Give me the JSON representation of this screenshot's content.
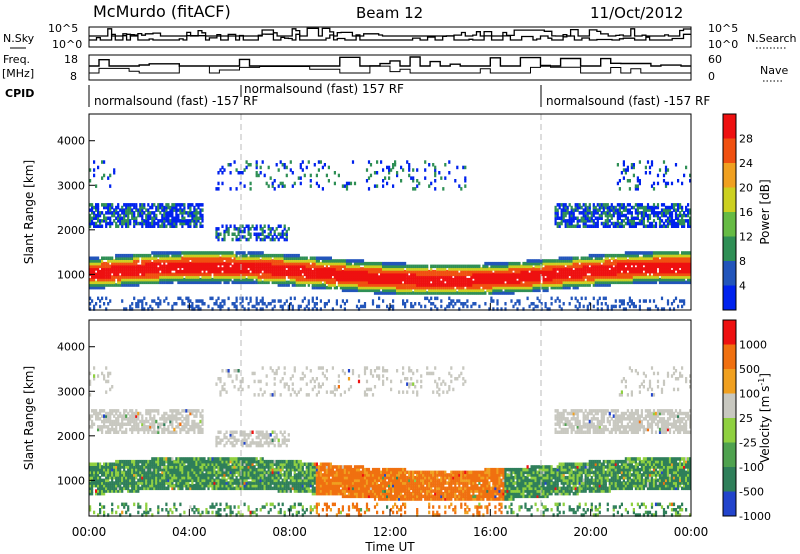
{
  "header": {
    "station": "McMurdo (fitACF)",
    "beam": "Beam 12",
    "date": "11/Oct/2012"
  },
  "meta_panels": {
    "nsky_label": "N.Sky",
    "nsky_ticks": [
      "10^5",
      "10^0"
    ],
    "nsearch_label": "N.Search",
    "nsearch_ticks": [
      "10^5",
      "10^0"
    ],
    "freq_label_line1": "Freq.",
    "freq_label_line2": "[MHz]",
    "freq_ticks": [
      "18",
      "8"
    ],
    "nave_label": "Nave",
    "nave_ticks": [
      "60",
      "0"
    ],
    "cpid_label": "CPID",
    "cpid_segments": [
      {
        "label": "normalsound (fast) -157 RF",
        "start_h": 0.0,
        "end_h": 6.0
      },
      {
        "label": "normalsound (fast) 157 RF",
        "start_h": 6.0,
        "end_h": 18.0
      },
      {
        "label": "normalsound (fast) -157 RF",
        "start_h": 18.0,
        "end_h": 24.0
      }
    ]
  },
  "chart_data": [
    {
      "type": "heatmap",
      "parameter": "Power",
      "ylabel": "Slant Range [km]",
      "yticks": [
        1000,
        2000,
        3000,
        4000
      ],
      "ylim": [
        200,
        4600
      ],
      "xticks": [
        "00:00",
        "04:00",
        "08:00",
        "12:00",
        "16:00",
        "20:00",
        "00:00"
      ],
      "xlim_hours": [
        0,
        24
      ],
      "colorbar": {
        "label": "Power [dB]",
        "ticks": [
          "28",
          "24",
          "20",
          "16",
          "12",
          "8",
          "4"
        ],
        "colors": [
          "#0022ee",
          "#2255bb",
          "#2f8f55",
          "#66bb44",
          "#ccd020",
          "#f0a020",
          "#f05010",
          "#ee1010"
        ]
      },
      "bands": [
        {
          "name": "main echo",
          "range_center_km": 1000,
          "dominant": "red/orange 16-32 dB",
          "extent_hours": [
            0.0,
            24.0
          ]
        },
        {
          "name": "mid echo",
          "range_center_km": 2300,
          "dominant": "blue/green 4-12 dB",
          "extent_hours": [
            0.5,
            24.0
          ]
        },
        {
          "name": "upper echo",
          "range_center_km": 3200,
          "dominant": "blue 4-8 dB",
          "extent_hours": [
            0.3,
            24.0
          ]
        }
      ]
    },
    {
      "type": "heatmap",
      "parameter": "Velocity",
      "ylabel": "Slant Range [km]",
      "yticks": [
        1000,
        2000,
        3000,
        4000
      ],
      "ylim": [
        200,
        4600
      ],
      "xticks": [
        "00:00",
        "04:00",
        "08:00",
        "12:00",
        "16:00",
        "20:00",
        "00:00"
      ],
      "xlim_hours": [
        0,
        24
      ],
      "colorbar": {
        "label": "Velocity [m s",
        "label_sup": "-1",
        "label_end": "]",
        "ticks": [
          "1000",
          "500",
          "100",
          "25",
          "-25",
          "-100",
          "-500",
          "-1000"
        ],
        "colors": [
          "#2244cc",
          "#2f7f5a",
          "#4fa24f",
          "#8fd040",
          "#c8c8c0",
          "#f0a020",
          "#f07010",
          "#ee1010"
        ]
      },
      "bands": [
        {
          "name": "main echo",
          "range_center_km": 1100,
          "dominant": "green (toward) 0-08h, orange (away) 09-16h"
        },
        {
          "name": "mid echo",
          "range_center_km": 2300,
          "dominant": "grey (near zero)"
        }
      ]
    }
  ],
  "xlabel": "Time UT"
}
